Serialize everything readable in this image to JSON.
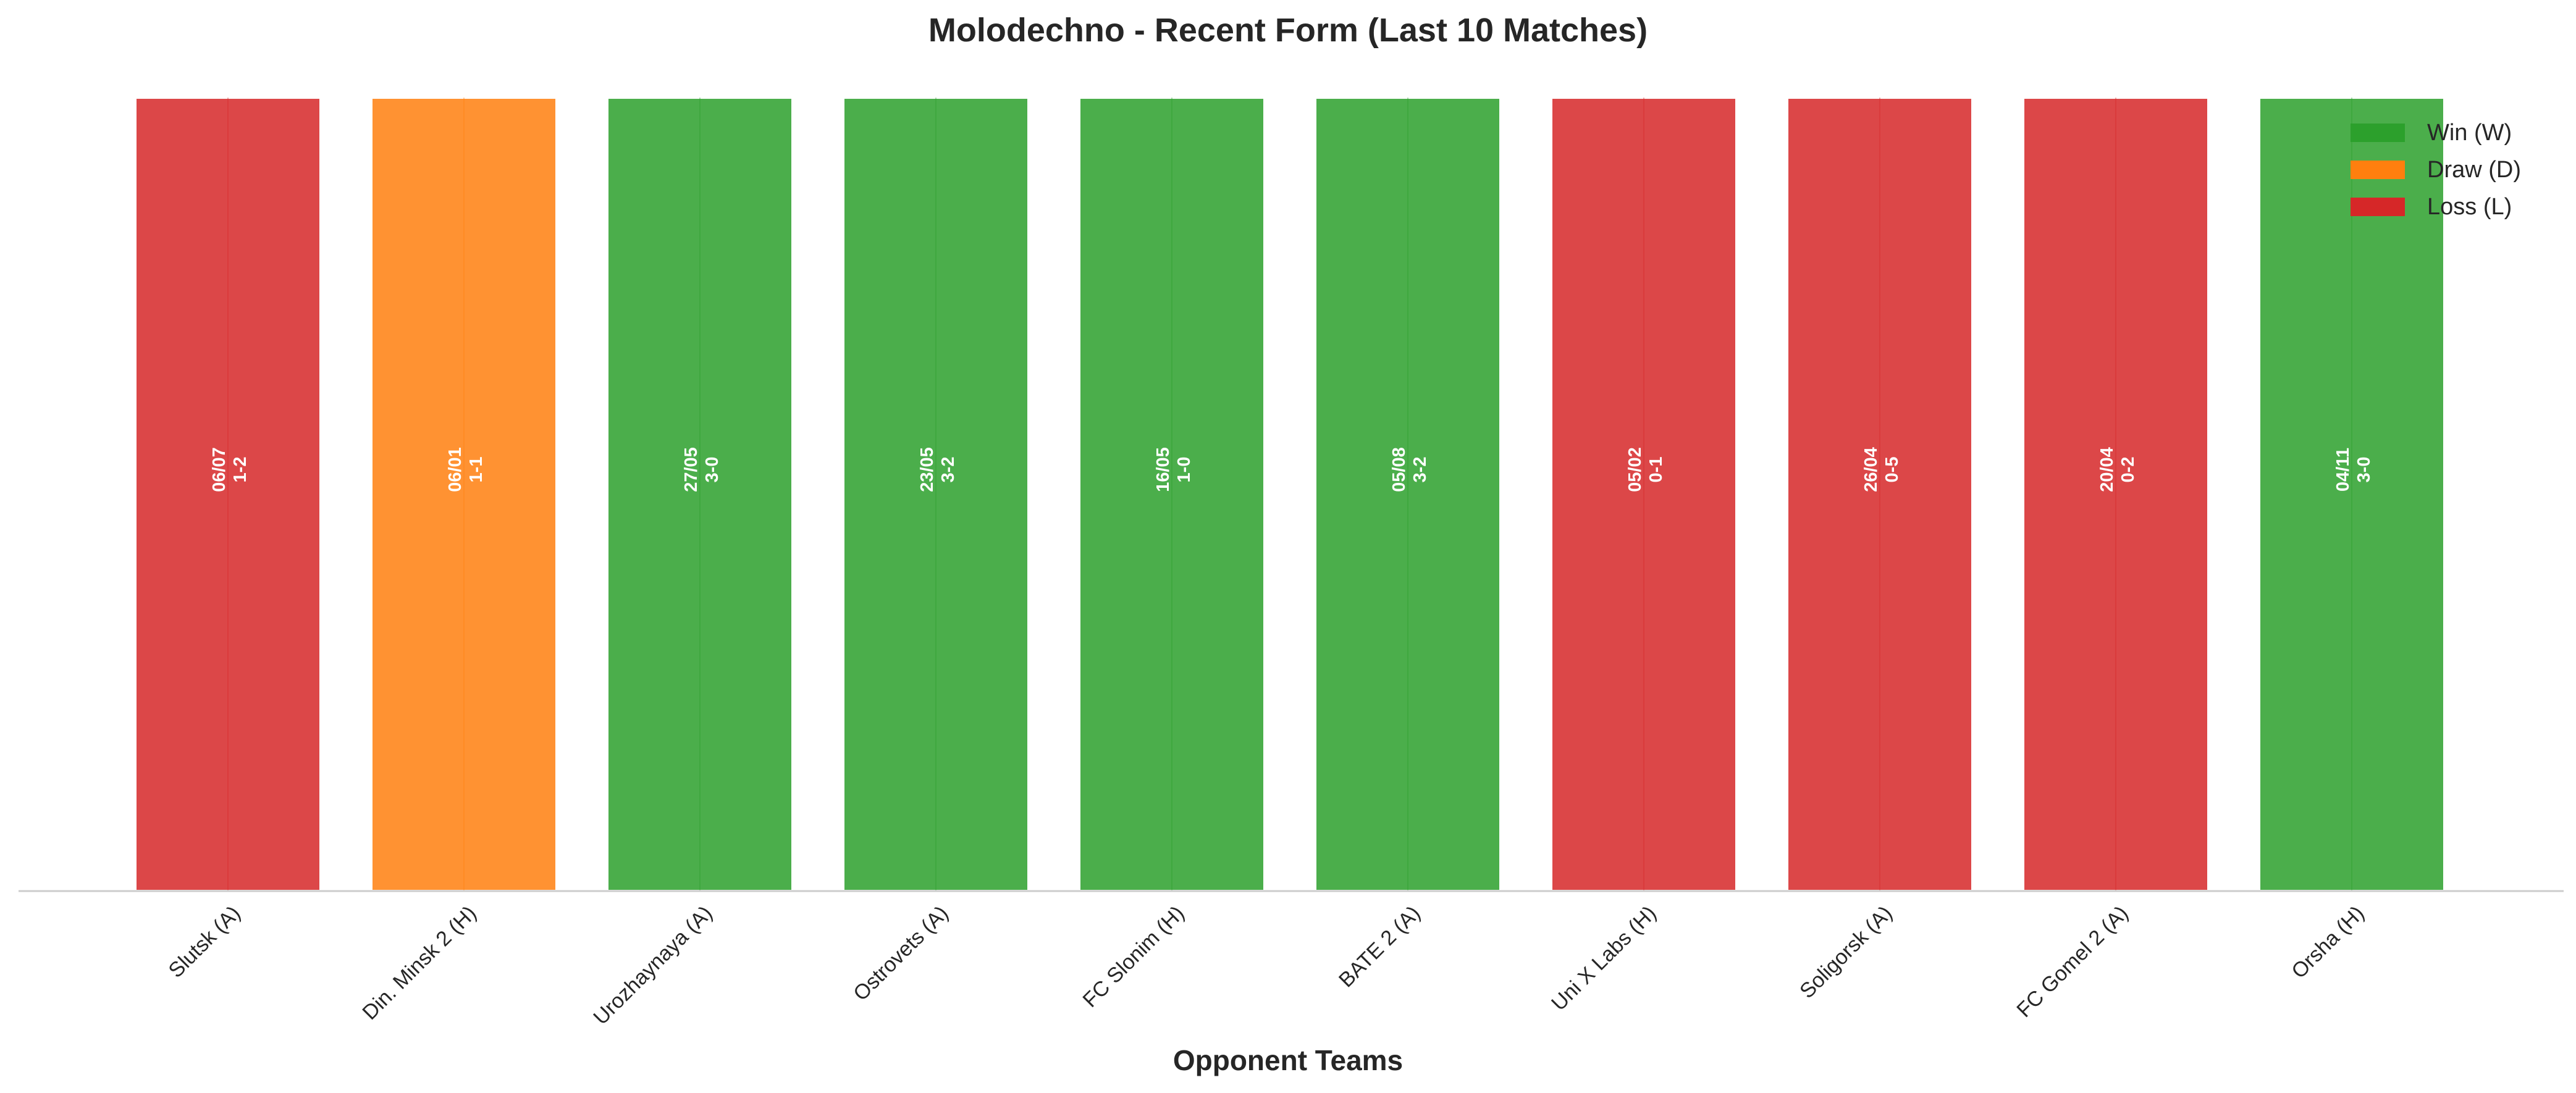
{
  "chart_data": {
    "type": "bar",
    "title": "Molodechno - Recent Form (Last 10 Matches)",
    "xlabel": "Opponent Teams",
    "ylabel": "",
    "categories": [
      "Slutsk (A)",
      "Din. Minsk 2 (H)",
      "Urozhaynaya (A)",
      "Ostrovets (A)",
      "FC Slonim (H)",
      "BATE 2 (A)",
      "Uni X Labs (H)",
      "Soligorsk (A)",
      "FC Gomel 2 (A)",
      "Orsha (H)"
    ],
    "results": [
      "L",
      "D",
      "W",
      "W",
      "W",
      "W",
      "L",
      "L",
      "L",
      "W"
    ],
    "dates": [
      "06/07",
      "06/01",
      "27/05",
      "23/05",
      "16/05",
      "05/08",
      "05/02",
      "26/04",
      "20/04",
      "04/11"
    ],
    "scores": [
      "1-2",
      "1-1",
      "3-0",
      "3-2",
      "1-0",
      "3-2",
      "0-1",
      "0-5",
      "0-2",
      "3-0"
    ],
    "values": [
      1,
      1,
      1,
      1,
      1,
      1,
      1,
      1,
      1,
      1
    ],
    "ylim": [
      0,
      1
    ],
    "grid": false,
    "legend_position": "top-right",
    "legend": [
      {
        "key": "W",
        "label": "Win (W)",
        "color": "#2ca02c"
      },
      {
        "key": "D",
        "label": "Draw (D)",
        "color": "#ff7f0e"
      },
      {
        "key": "L",
        "label": "Loss (L)",
        "color": "#d62728"
      }
    ]
  }
}
